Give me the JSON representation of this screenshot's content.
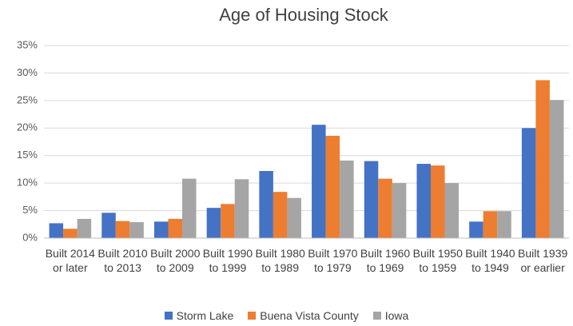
{
  "chart_data": {
    "type": "bar",
    "title": "Age of Housing Stock",
    "categories": [
      "Built 2014 or later",
      "Built 2010 to 2013",
      "Built 2000 to 2009",
      "Built 1990 to 1999",
      "Built 1980 to 1989",
      "Built 1970 to 1979",
      "Built 1960 to 1969",
      "Built 1950 to 1959",
      "Built 1940 to 1949",
      "Built 1939 or earlier"
    ],
    "series": [
      {
        "name": "Storm Lake",
        "color": "#4472c4",
        "values": [
          2.7,
          4.6,
          3.0,
          5.5,
          12.2,
          20.6,
          14.0,
          13.5,
          3.0,
          20.0
        ]
      },
      {
        "name": "Buena Vista County",
        "color": "#ed7d31",
        "values": [
          1.7,
          3.1,
          3.5,
          6.2,
          8.4,
          18.6,
          10.8,
          13.2,
          4.9,
          28.7
        ]
      },
      {
        "name": "Iowa",
        "color": "#a5a5a5",
        "values": [
          3.5,
          2.9,
          10.8,
          10.7,
          7.3,
          14.1,
          10.0,
          10.0,
          4.9,
          25.1
        ]
      }
    ],
    "ylim": [
      0,
      35
    ],
    "yticks": [
      {
        "value": 0,
        "label": "0%"
      },
      {
        "value": 5,
        "label": "5%"
      },
      {
        "value": 10,
        "label": "10%"
      },
      {
        "value": 15,
        "label": "15%"
      },
      {
        "value": 20,
        "label": "20%"
      },
      {
        "value": 25,
        "label": "25%"
      },
      {
        "value": 30,
        "label": "30%"
      },
      {
        "value": 35,
        "label": "35%"
      }
    ],
    "grid": true,
    "legend": "bottom"
  }
}
